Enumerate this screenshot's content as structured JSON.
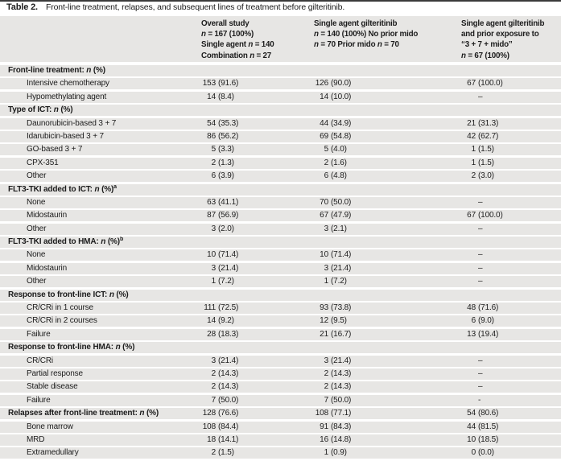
{
  "caption": {
    "label": "Table 2.",
    "text": "Front-line treatment, relapses, and subsequent lines of treatment before gilteritinib."
  },
  "colors": {
    "row_background": "#e7e6e4",
    "text": "#1c1c1c",
    "top_rule": "#3a3a3a"
  },
  "header_columns": [
    {
      "name": "overall-study",
      "lines": [
        "Overall study",
        "n = 167 (100%)",
        "Single agent n = 140",
        "Combination n = 27"
      ]
    },
    {
      "name": "single-agent-gilteritinib",
      "lines": [
        "Single agent gilteritinib",
        "n = 140 (100%) No prior mido",
        "n = 70 Prior mido n = 70"
      ]
    },
    {
      "name": "single-agent-prior-mido",
      "lines": [
        "Single agent gilteritinib",
        "and prior exposure to",
        "“3 + 7 + mido”",
        "n = 67 (100%)"
      ]
    }
  ],
  "rows": [
    {
      "type": "section",
      "label": "Front-line treatment: n (%)",
      "values": [
        "",
        "",
        ""
      ]
    },
    {
      "type": "item",
      "label": "Intensive chemotherapy",
      "values": [
        "153 (91.6)",
        "126 (90.0)",
        "67 (100.0)"
      ]
    },
    {
      "type": "item",
      "label": "Hypomethylating agent",
      "values": [
        "14 (8.4)",
        "14 (10.0)",
        "–"
      ]
    },
    {
      "type": "section",
      "label": "Type of ICT: n (%)",
      "values": [
        "",
        "",
        ""
      ]
    },
    {
      "type": "item",
      "label": "Daunorubicin-based 3 + 7",
      "values": [
        "54 (35.3)",
        "44 (34.9)",
        "21 (31.3)"
      ]
    },
    {
      "type": "item",
      "label": "Idarubicin-based 3 + 7",
      "values": [
        "86 (56.2)",
        "69 (54.8)",
        "42 (62.7)"
      ]
    },
    {
      "type": "item",
      "label": "GO-based 3 + 7",
      "values": [
        "5 (3.3)",
        "5 (4.0)",
        "1 (1.5)"
      ]
    },
    {
      "type": "item",
      "label": "CPX-351",
      "values": [
        "2 (1.3)",
        "2 (1.6)",
        "1 (1.5)"
      ]
    },
    {
      "type": "item",
      "label": "Other",
      "values": [
        "6 (3.9)",
        "6 (4.8)",
        "2 (3.0)"
      ]
    },
    {
      "type": "section",
      "label": "FLT3-TKI added to ICT: n (%)^a",
      "values": [
        "",
        "",
        ""
      ]
    },
    {
      "type": "item",
      "label": "None",
      "values": [
        "63 (41.1)",
        "70 (50.0)",
        "–"
      ]
    },
    {
      "type": "item",
      "label": "Midostaurin",
      "values": [
        "87 (56.9)",
        "67 (47.9)",
        "67 (100.0)"
      ]
    },
    {
      "type": "item",
      "label": "Other",
      "values": [
        "3 (2.0)",
        "3 (2.1)",
        "–"
      ]
    },
    {
      "type": "section",
      "label": "FLT3-TKI added to HMA: n (%)^b",
      "values": [
        "",
        "",
        ""
      ]
    },
    {
      "type": "item",
      "label": "None",
      "values": [
        "10 (71.4)",
        "10 (71.4)",
        "–"
      ]
    },
    {
      "type": "item",
      "label": "Midostaurin",
      "values": [
        "3 (21.4)",
        "3 (21.4)",
        "–"
      ]
    },
    {
      "type": "item",
      "label": "Other",
      "values": [
        "1 (7.2)",
        "1 (7.2)",
        "–"
      ]
    },
    {
      "type": "section",
      "label": "Response to front-line ICT: n (%)",
      "values": [
        "",
        "",
        ""
      ]
    },
    {
      "type": "item",
      "label": "CR/CRi in 1 course",
      "values": [
        "111 (72.5)",
        "93 (73.8)",
        "48 (71.6)"
      ]
    },
    {
      "type": "item",
      "label": "CR/CRi in 2 courses",
      "values": [
        "14 (9.2)",
        "12 (9.5)",
        "6 (9.0)"
      ]
    },
    {
      "type": "item",
      "label": "Failure",
      "values": [
        "28 (18.3)",
        "21 (16.7)",
        "13 (19.4)"
      ]
    },
    {
      "type": "section",
      "label": "Response to front-line HMA: n (%)",
      "values": [
        "",
        "",
        ""
      ]
    },
    {
      "type": "item",
      "label": "CR/CRi",
      "values": [
        "3 (21.4)",
        "3 (21.4)",
        "–"
      ]
    },
    {
      "type": "item",
      "label": "Partial response",
      "values": [
        "2 (14.3)",
        "2 (14.3)",
        "–"
      ]
    },
    {
      "type": "item",
      "label": "Stable disease",
      "values": [
        "2 (14.3)",
        "2 (14.3)",
        "–"
      ]
    },
    {
      "type": "item",
      "label": "Failure",
      "values": [
        "7 (50.0)",
        "7 (50.0)",
        "-"
      ]
    },
    {
      "type": "section-values",
      "label": "Relapses after front-line treatment: n (%)",
      "values": [
        "128 (76.6)",
        "108 (77.1)",
        "54 (80.6)"
      ]
    },
    {
      "type": "item",
      "label": "Bone marrow",
      "values": [
        "108 (84.4)",
        "91 (84.3)",
        "44 (81.5)"
      ]
    },
    {
      "type": "item",
      "label": "MRD",
      "values": [
        "18 (14.1)",
        "16 (14.8)",
        "10 (18.5)"
      ]
    },
    {
      "type": "item",
      "label": "Extramedullary",
      "values": [
        "2 (1.5)",
        "1 (0.9)",
        "0 (0.0)"
      ]
    }
  ]
}
